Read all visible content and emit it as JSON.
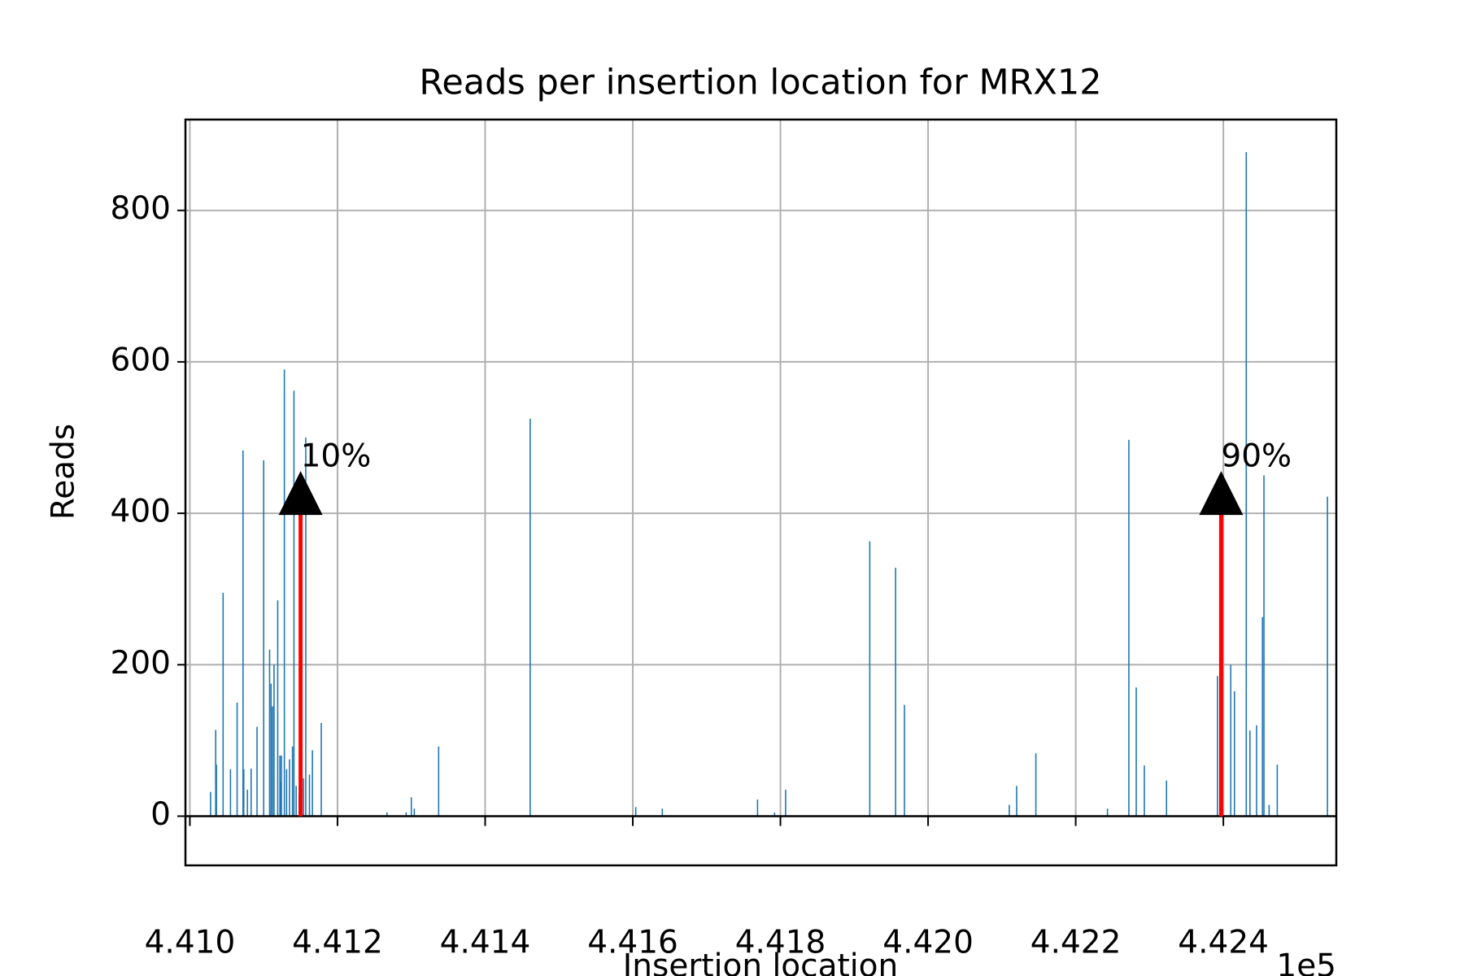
{
  "chart_data": {
    "type": "bar",
    "title": "Reads per insertion location for MRX12",
    "x_label": "Insertion location",
    "y_label": "Reads",
    "x_offset_label": "1e5",
    "color": "#1f77b4",
    "grid": true,
    "x": [
      441028,
      441035,
      441036,
      441045,
      441055,
      441064,
      441072,
      441073,
      441078,
      441083,
      441091,
      441100,
      441108,
      441110,
      441112,
      441114,
      441119,
      441122,
      441123,
      441124,
      441128,
      441131,
      441135,
      441139,
      441141,
      441144,
      441148,
      441154,
      441157,
      441162,
      441166,
      441178,
      441267,
      441293,
      441300,
      441304,
      441337,
      441461,
      441604,
      441640,
      441769,
      441792,
      441807,
      441921,
      441956,
      441968,
      442110,
      442120,
      442146,
      442243,
      442272,
      442282,
      442293,
      442323,
      442392,
      442410,
      442415,
      442431,
      442436,
      442445,
      442453,
      442455,
      442462,
      442473,
      442541
    ],
    "values": [
      32,
      114,
      68,
      295,
      62,
      150,
      483,
      62,
      35,
      63,
      118,
      470,
      220,
      175,
      145,
      200,
      285,
      80,
      45,
      80,
      590,
      62,
      75,
      92,
      562,
      40,
      30,
      50,
      500,
      55,
      87,
      123,
      5,
      5,
      25,
      10,
      92,
      525,
      12,
      10,
      22,
      5,
      35,
      363,
      328,
      147,
      15,
      40,
      83,
      10,
      497,
      170,
      67,
      47,
      185,
      200,
      165,
      877,
      113,
      120,
      263,
      450,
      15,
      68,
      422
    ],
    "xlim": [
      440994,
      442553
    ],
    "xticks": [
      {
        "value": 441000,
        "label": "4.410"
      },
      {
        "value": 441200,
        "label": "4.412"
      },
      {
        "value": 441400,
        "label": "4.414"
      },
      {
        "value": 441600,
        "label": "4.416"
      },
      {
        "value": 441800,
        "label": "4.418"
      },
      {
        "value": 442000,
        "label": "4.420"
      },
      {
        "value": 442200,
        "label": "4.422"
      },
      {
        "value": 442400,
        "label": "4.424"
      }
    ],
    "ylim": [
      -65,
      920
    ],
    "yticks": [
      0,
      200,
      400,
      600,
      800
    ],
    "annotation_color": "#ff0000",
    "annotations": [
      {
        "text": "10%",
        "x": 441150,
        "y": 400
      },
      {
        "text": "90%",
        "x": 442397,
        "y": 400
      }
    ]
  }
}
